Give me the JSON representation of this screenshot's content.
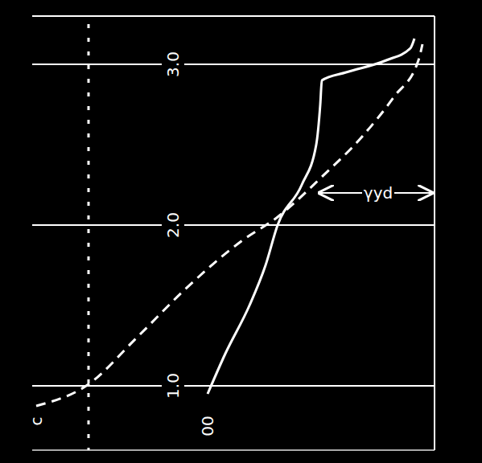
{
  "chart_data": {
    "type": "line",
    "xlim": [
      0,
      100
    ],
    "ylim": [
      0.6,
      3.3
    ],
    "yticks": [
      {
        "value": 1,
        "label": "1.0"
      },
      {
        "value": 2,
        "label": "2.0"
      },
      {
        "value": 3,
        "label": "3.0"
      }
    ],
    "grid": true,
    "tick_labels": "y",
    "series": [
      {
        "color": "#ffffff",
        "line_style": "solid",
        "x": [
          43.6,
          48,
          54,
          58,
          61,
          67,
          70.6,
          71.6,
          72,
          78,
          88,
          94,
          95
        ],
        "values": [
          0.95,
          1.2,
          1.5,
          1.75,
          2.0,
          2.25,
          2.5,
          2.75,
          2.9,
          2.95,
          3.025,
          3.1,
          3.16
        ]
      },
      {
        "color": "#ffffff",
        "line_style": "dashed",
        "x": [
          1,
          14,
          26,
          38,
          52,
          61,
          72,
          82,
          90,
          96,
          97
        ],
        "values": [
          0.875,
          1.01,
          1.3,
          1.6,
          1.9,
          2.05,
          2.3,
          2.55,
          2.8,
          3.025,
          3.125
        ]
      }
    ],
    "annotations": [
      {
        "text": "c",
        "x": 1,
        "y": 0.78
      },
      {
        "text": "00",
        "x": 43.6,
        "y": 0.75
      },
      {
        "text": "γyd",
        "x": 86,
        "y": 2.2
      }
    ]
  }
}
